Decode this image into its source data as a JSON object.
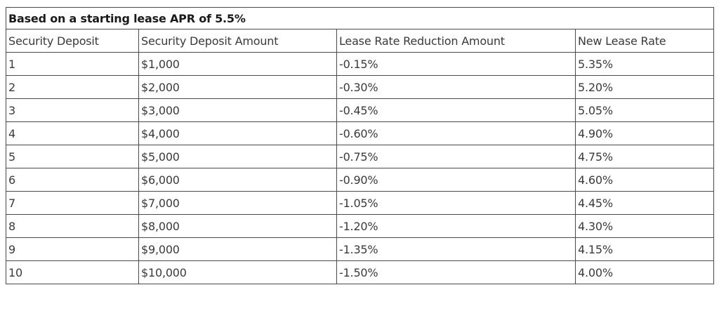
{
  "caption": "Based on a starting lease APR of 5.5%",
  "headers": [
    "Security Deposit",
    "Security Deposit Amount",
    "Lease Rate Reduction Amount",
    "New Lease Rate"
  ],
  "rows": [
    [
      "1",
      "$1,000",
      "-0.15%",
      "5.35%"
    ],
    [
      "2",
      "$2,000",
      "-0.30%",
      "5.20%"
    ],
    [
      "3",
      "$3,000",
      "-0.45%",
      "5.05%"
    ],
    [
      "4",
      "$4,000",
      "-0.60%",
      "4.90%"
    ],
    [
      "5",
      "$5,000",
      "-0.75%",
      "4.75%"
    ],
    [
      "6",
      "$6,000",
      "-0.90%",
      "4.60%"
    ],
    [
      "7",
      "$7,000",
      "-1.05%",
      "4.45%"
    ],
    [
      "8",
      "$8,000",
      "-1.20%",
      "4.30%"
    ],
    [
      "9",
      "$9,000",
      "-1.35%",
      "4.15%"
    ],
    [
      "10",
      "$10,000",
      "-1.50%",
      "4.00%"
    ]
  ]
}
